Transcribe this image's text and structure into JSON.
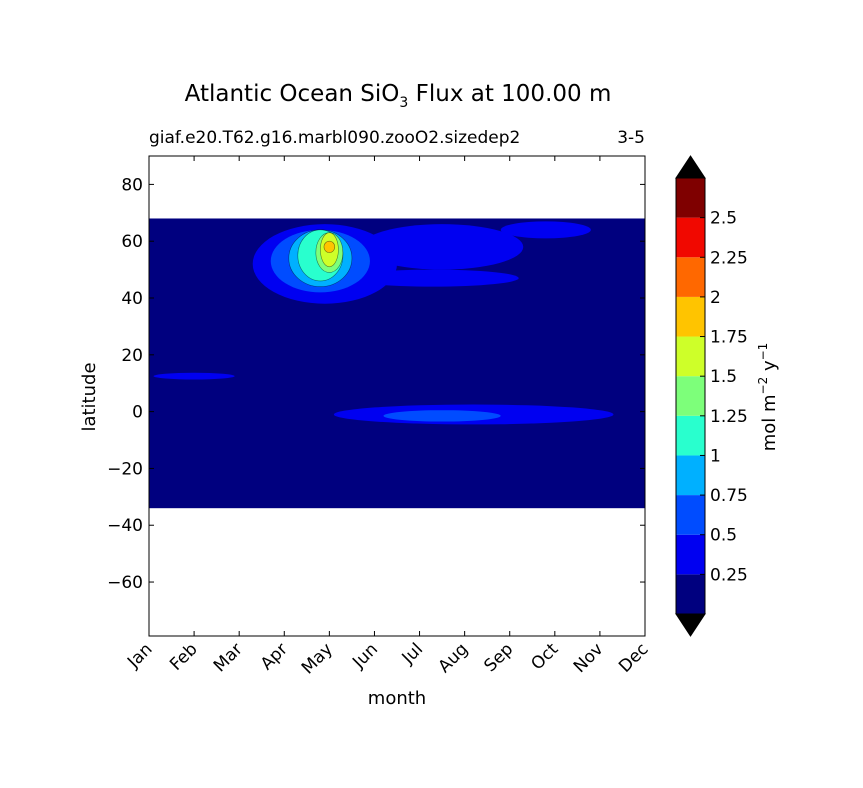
{
  "chart_data": {
    "type": "heatmap",
    "title_main": "Atlantic Ocean SiO",
    "title_sub": "3",
    "title_rest": " Flux at 100.00 m",
    "subtitle_left": "giaf.e20.T62.g16.marbl090.zooO2.sizedep2",
    "subtitle_right": "3-5",
    "xlabel": "month",
    "ylabel": "latitude",
    "x_ticks": [
      "Jan",
      "Feb",
      "Mar",
      "Apr",
      "May",
      "Jun",
      "Jul",
      "Aug",
      "Sep",
      "Oct",
      "Nov",
      "Dec"
    ],
    "y_ticks": [
      80,
      60,
      40,
      20,
      0,
      -20,
      -40,
      -60
    ],
    "y_tick_labels": [
      "80",
      "60",
      "40",
      "20",
      "0",
      "−20",
      "−40",
      "−60"
    ],
    "ylim": [
      -79,
      90
    ],
    "data_lat_range": [
      -34,
      68
    ],
    "colorbar": {
      "label_pre": "mol m",
      "label_exp1": "−2",
      "label_mid": " y",
      "label_exp2": "−1",
      "levels": [
        0.0,
        0.25,
        0.5,
        0.75,
        1.0,
        1.25,
        1.5,
        1.75,
        2.0,
        2.25,
        2.5,
        2.75
      ],
      "tick_labels": [
        "0.25",
        "0.5",
        "0.75",
        "1",
        "1.25",
        "1.5",
        "1.75",
        "2",
        "2.25",
        "2.5"
      ],
      "colors": [
        "#00007f",
        "#0000f1",
        "#004cff",
        "#00b0ff",
        "#29ffce",
        "#7dff7a",
        "#ceff29",
        "#ffc400",
        "#ff6800",
        "#f10800",
        "#7f0000"
      ],
      "extend_colors": {
        "under": "#000000",
        "over": "#000000"
      }
    },
    "regions": [
      {
        "level": 1,
        "month": 3.9,
        "lat": 52,
        "month_radius": 1.6,
        "lat_radius": 14
      },
      {
        "level": 1,
        "month": 6.3,
        "lat": 47,
        "month_radius": 1.9,
        "lat_radius": 3
      },
      {
        "level": 1,
        "month": 6.5,
        "lat": 58,
        "month_radius": 1.8,
        "lat_radius": 8
      },
      {
        "level": 1,
        "month": 8.8,
        "lat": 64,
        "month_radius": 1.0,
        "lat_radius": 3
      },
      {
        "level": 1,
        "month": 7.2,
        "lat": -1,
        "month_radius": 3.1,
        "lat_radius": 3.5
      },
      {
        "level": 1,
        "month": 1.0,
        "lat": 12.5,
        "month_radius": 0.9,
        "lat_radius": 1.2
      },
      {
        "level": 2,
        "month": 3.8,
        "lat": 53,
        "month_radius": 1.1,
        "lat_radius": 11
      },
      {
        "level": 2,
        "month": 6.5,
        "lat": -1.5,
        "month_radius": 1.3,
        "lat_radius": 2
      },
      {
        "level": 3,
        "month": 3.8,
        "lat": 54,
        "month_radius": 0.7,
        "lat_radius": 10
      },
      {
        "level": 4,
        "month": 3.8,
        "lat": 55,
        "month_radius": 0.5,
        "lat_radius": 9
      },
      {
        "level": 5,
        "month": 4.0,
        "lat": 56,
        "month_radius": 0.3,
        "lat_radius": 7
      },
      {
        "level": 6,
        "month": 4.0,
        "lat": 57,
        "month_radius": 0.2,
        "lat_radius": 6
      },
      {
        "level": 7,
        "month": 4.0,
        "lat": 58,
        "month_radius": 0.12,
        "lat_radius": 2
      }
    ]
  }
}
